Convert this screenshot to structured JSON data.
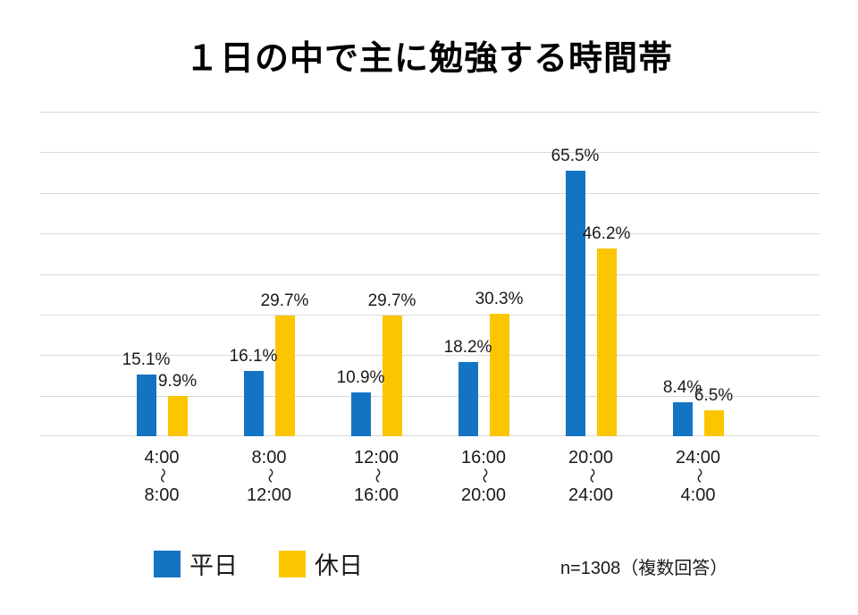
{
  "chart_data": {
    "type": "bar",
    "title": "１日の中で主に勉強する時間帯",
    "categories": [
      {
        "start": "4:00",
        "end": "8:00"
      },
      {
        "start": "8:00",
        "end": "12:00"
      },
      {
        "start": "12:00",
        "end": "16:00"
      },
      {
        "start": "16:00",
        "end": "20:00"
      },
      {
        "start": "20:00",
        "end": "24:00"
      },
      {
        "start": "24:00",
        "end": "4:00"
      }
    ],
    "range_separator": "〜",
    "series": [
      {
        "key": "weekday",
        "name": "平日",
        "color": "#1474C4",
        "values": [
          15.1,
          16.1,
          10.9,
          18.2,
          65.5,
          8.4
        ]
      },
      {
        "key": "holiday",
        "name": "休日",
        "color": "#FBC500",
        "values": [
          9.9,
          29.7,
          29.7,
          30.3,
          46.2,
          6.5
        ]
      }
    ],
    "value_suffix": "%",
    "ylim": [
      0,
      80
    ],
    "grid_interval": 10,
    "grid": true,
    "gridline_color": "#D9D9D9",
    "legend_position": "bottom",
    "xlabel": "",
    "ylabel": "",
    "note": "n=1308（複数回答）"
  }
}
